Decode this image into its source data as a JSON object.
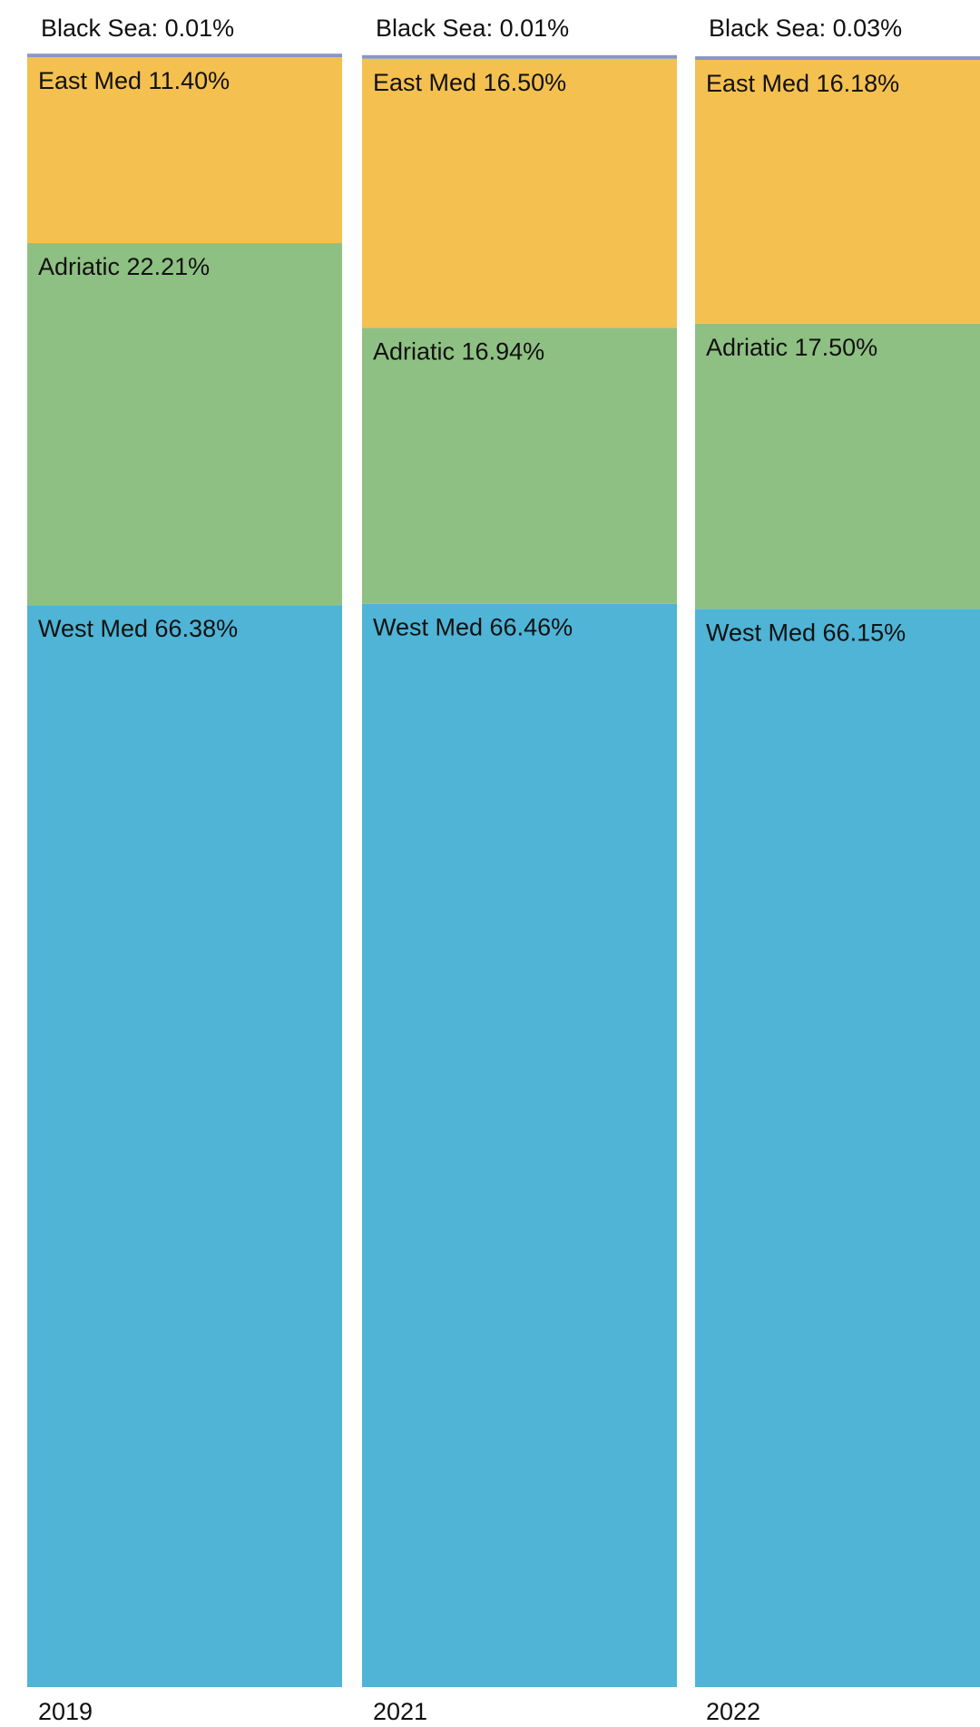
{
  "chart_data": {
    "type": "bar",
    "stacked": true,
    "normalized": "percent",
    "categories": [
      "2019",
      "2021",
      "2022"
    ],
    "series": [
      {
        "name": "Black Sea",
        "values": [
          0.01,
          0.01,
          0.03
        ],
        "color": "#8a95c8"
      },
      {
        "name": "East Med",
        "values": [
          11.4,
          16.5,
          16.18
        ],
        "color": "#f4c050"
      },
      {
        "name": "Adriatic",
        "values": [
          22.21,
          16.94,
          17.5
        ],
        "color": "#8fc083"
      },
      {
        "name": "West Med",
        "values": [
          66.38,
          66.46,
          66.15
        ],
        "color": "#4fb4d6"
      }
    ],
    "segment_labels": {
      "Black Sea": [
        "Black Sea: 0.01%",
        "Black Sea: 0.01%",
        "Black Sea: 0.03%"
      ],
      "East Med": [
        "East Med 11.40%",
        "East Med 16.50%",
        "East Med 16.18%"
      ],
      "Adriatic": [
        "Adriatic 22.21%",
        "Adriatic 16.94%",
        "Adriatic 17.50%"
      ],
      "West Med": [
        "West Med 66.38%",
        "West Med 66.46%",
        "West Med 66.15%"
      ]
    },
    "title": "",
    "xlabel": "",
    "ylabel": "",
    "ylim": [
      0,
      100
    ],
    "legend": "none",
    "grid": false
  }
}
